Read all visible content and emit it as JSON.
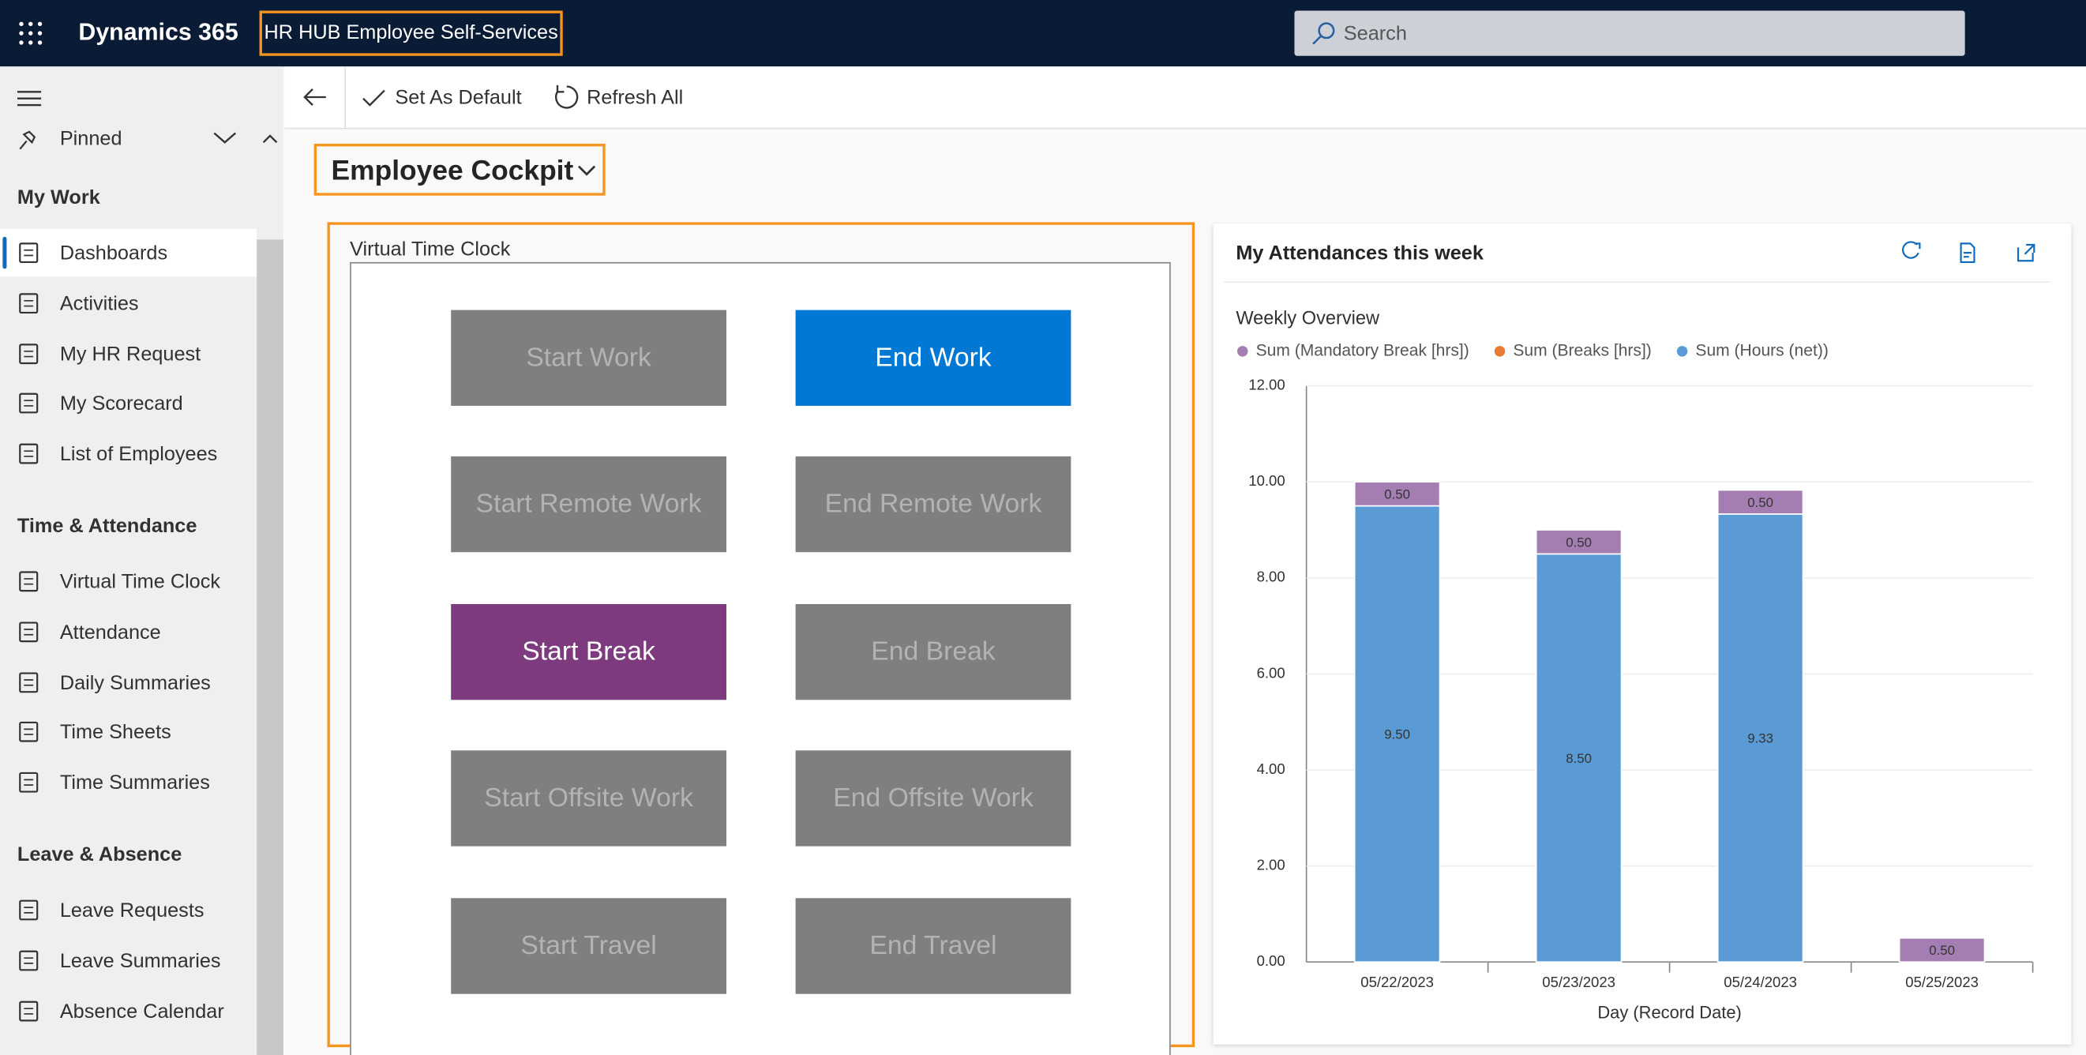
{
  "header": {
    "app": "Dynamics 365",
    "title": "HR HUB Employee Self-Services",
    "search": "Search"
  },
  "toolbar": {
    "buttons": [
      "Set As Default",
      "Refresh All"
    ]
  },
  "sidebar": {
    "pinned": "Pinned",
    "groups": [
      {
        "title": "My Work",
        "items": [
          "Dashboards",
          "Activities",
          "My HR Request",
          "My Scorecard",
          "List of Employees"
        ]
      },
      {
        "title": "Time & Attendance",
        "items": [
          "Virtual Time Clock",
          "Attendance",
          "Daily Summaries",
          "Time Sheets",
          "Time Summaries"
        ]
      },
      {
        "title": "Leave & Absence",
        "items": [
          "Leave Requests",
          "Leave Summaries",
          "Absence Calendar"
        ]
      }
    ]
  },
  "dashboard": {
    "title": "Employee Cockpit"
  },
  "time_clock": {
    "title": "Virtual Time Clock",
    "buttons": [
      {
        "label": "Start Work",
        "color": "#7f7f7f",
        "text_color": "#b3b3b3"
      },
      {
        "label": "End Work",
        "color": "#0078d4",
        "text_color": "#ffffff"
      },
      {
        "label": "Start Remote Work",
        "color": "#7f7f7f",
        "text_color": "#b3b3b3"
      },
      {
        "label": "End Remote Work",
        "color": "#7f7f7f",
        "text_color": "#b3b3b3"
      },
      {
        "label": "Start Break",
        "color": "#7e3a7e",
        "text_color": "#ffffff"
      },
      {
        "label": "End Break",
        "color": "#7f7f7f",
        "text_color": "#b3b3b3"
      },
      {
        "label": "Start Offsite Work",
        "color": "#7f7f7f",
        "text_color": "#b3b3b3"
      },
      {
        "label": "End Offsite Work",
        "color": "#7f7f7f",
        "text_color": "#b3b3b3"
      },
      {
        "label": "Start Travel",
        "color": "#7f7f7f",
        "text_color": "#b3b3b3"
      },
      {
        "label": "End Travel",
        "color": "#7f7f7f",
        "text_color": "#b3b3b3"
      }
    ]
  },
  "chart_data": {
    "type": "stacked_bar",
    "title": "My Attendances this week",
    "subtitle": "Weekly Overview",
    "x_label": "Day (Record Date)",
    "categories": [
      "05/22/2023",
      "05/23/2023",
      "05/24/2023",
      "05/25/2023"
    ],
    "series": [
      {
        "name": "Sum (Mandatory Break [hrs])",
        "color": "#a47db3",
        "values": [
          0.5,
          0.5,
          0.5,
          0.5
        ],
        "value_labels": [
          "0.50",
          "0.50",
          "0.50",
          "0.50"
        ]
      },
      {
        "name": "Sum (Breaks [hrs])",
        "color": "#ea7a32",
        "values": [
          null,
          null,
          null,
          null
        ]
      },
      {
        "name": "Sum (Hours (net))",
        "color": "#5b9bd5",
        "values": [
          9.5,
          8.5,
          9.33,
          null
        ],
        "value_labels": [
          "9.50",
          "8.50",
          "9.33",
          null
        ]
      }
    ],
    "ylim": [
      0,
      12
    ],
    "yticks": [
      {
        "value": 0,
        "label": "0.00"
      },
      {
        "value": 2,
        "label": "2.00"
      },
      {
        "value": 4,
        "label": "4.00"
      },
      {
        "value": 6,
        "label": "6.00"
      },
      {
        "value": 8,
        "label": "8.00"
      },
      {
        "value": 10,
        "label": "10.00"
      },
      {
        "value": 12,
        "label": "12.00"
      }
    ],
    "grid": true
  }
}
